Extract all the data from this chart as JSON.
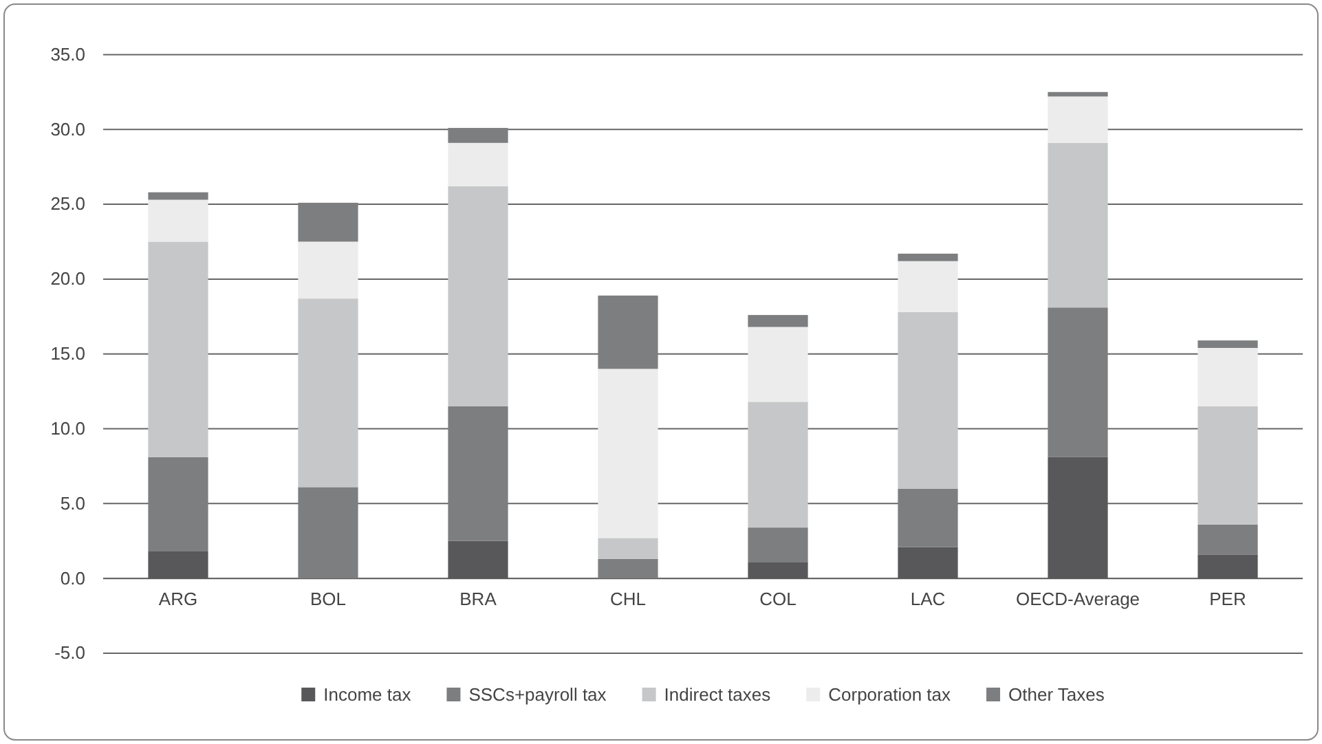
{
  "chart_data": {
    "type": "bar",
    "stacked": true,
    "categories": [
      "ARG",
      "BOL",
      "BRA",
      "CHL",
      "COL",
      "LAC",
      "OECD-Average",
      "PER"
    ],
    "series": [
      {
        "name": "Income tax",
        "color": "#58585a",
        "values": [
          1.8,
          0,
          2.5,
          0,
          1.1,
          2.1,
          8.1,
          1.6
        ]
      },
      {
        "name": "SSCs+payroll tax",
        "color": "#7d7e80",
        "values": [
          6.3,
          6.1,
          9.0,
          1.3,
          2.3,
          3.9,
          10.0,
          2.0
        ]
      },
      {
        "name": "Indirect taxes",
        "color": "#c6c7c8",
        "values": [
          14.4,
          12.6,
          14.7,
          1.4,
          8.4,
          11.8,
          11.0,
          7.9
        ]
      },
      {
        "name": "Corporation tax",
        "color": "#ebeceb",
        "values": [
          2.8,
          3.8,
          2.9,
          11.3,
          5.0,
          3.4,
          3.1,
          3.9
        ]
      },
      {
        "name": "Other Taxes",
        "color": "#7d7e80",
        "values": [
          0.5,
          2.6,
          1.0,
          4.9,
          0.8,
          0.5,
          0.3,
          0.5
        ]
      }
    ],
    "ylim": [
      -5,
      35
    ],
    "yticks": [
      {
        "value": -5,
        "label": "-5.0"
      },
      {
        "value": 0,
        "label": "0.0"
      },
      {
        "value": 5,
        "label": "5.0"
      },
      {
        "value": 10,
        "label": "10.0"
      },
      {
        "value": 15,
        "label": "15.0"
      },
      {
        "value": 20,
        "label": "20.0"
      },
      {
        "value": 25,
        "label": "25.0"
      },
      {
        "value": 30,
        "label": "30.0"
      },
      {
        "value": 35,
        "label": "35.0"
      }
    ],
    "grid": "y",
    "legend": "bottom"
  }
}
